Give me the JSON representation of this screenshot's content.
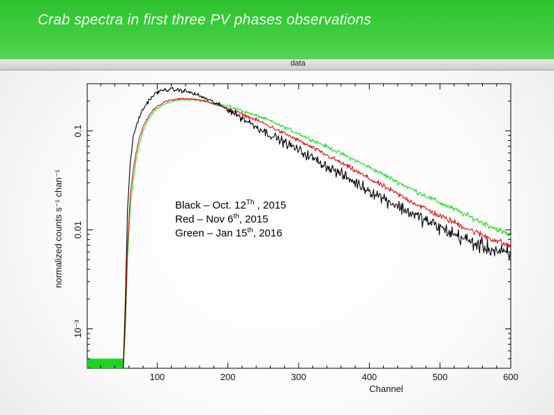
{
  "slide": {
    "title": "Crab spectra in first three PV phases observations"
  },
  "chart_data": {
    "type": "line",
    "plot_header": "data",
    "xlabel": "Channel",
    "ylabel": "normalized counts s⁻¹ chan⁻¹",
    "xlim": [
      1,
      600
    ],
    "ylim": [
      0.0004,
      0.3
    ],
    "y_scale": "log",
    "x_ticks": [
      100,
      200,
      300,
      400,
      500,
      600
    ],
    "y_ticks": [
      {
        "value": 0.001,
        "label": "10⁻³"
      },
      {
        "value": 0.01,
        "label": "0.01"
      },
      {
        "value": 0.1,
        "label": "0.1"
      }
    ],
    "legend": [
      {
        "name": "Black",
        "date": "Oct. 12",
        "sup": "Th",
        "year": " , 2015",
        "color": "#000000"
      },
      {
        "name": "Red",
        "date": "Nov 6",
        "sup": "th",
        "year": ", 2015",
        "color": "#e01010"
      },
      {
        "name": "Green",
        "date": "Jan 15",
        "sup": "th",
        "year": ", 2016",
        "color": "#22e022"
      }
    ],
    "series": [
      {
        "color": "#000000",
        "noise": 0.16,
        "floor_value": 0.0005,
        "x": [
          52,
          55,
          58,
          62,
          66,
          70,
          75,
          80,
          85,
          90,
          95,
          100,
          110,
          120,
          130,
          140,
          150,
          160,
          170,
          180,
          200,
          220,
          250,
          300,
          350,
          400,
          450,
          500,
          550,
          600
        ],
        "y": [
          0.0004,
          0.002,
          0.016,
          0.05,
          0.085,
          0.11,
          0.14,
          0.165,
          0.19,
          0.21,
          0.23,
          0.245,
          0.26,
          0.262,
          0.258,
          0.252,
          0.24,
          0.226,
          0.21,
          0.195,
          0.165,
          0.135,
          0.1,
          0.064,
          0.04,
          0.025,
          0.016,
          0.0105,
          0.0072,
          0.0055
        ]
      },
      {
        "color": "#e01010",
        "noise": 0.07,
        "floor_value": 0.0005,
        "x": [
          52,
          55,
          58,
          62,
          66,
          70,
          75,
          80,
          85,
          90,
          95,
          100,
          110,
          120,
          130,
          140,
          150,
          160,
          170,
          180,
          200,
          220,
          250,
          300,
          350,
          400,
          450,
          500,
          550,
          600
        ],
        "y": [
          0.0004,
          0.0012,
          0.007,
          0.023,
          0.04,
          0.06,
          0.085,
          0.11,
          0.13,
          0.148,
          0.165,
          0.178,
          0.195,
          0.205,
          0.21,
          0.212,
          0.21,
          0.205,
          0.197,
          0.188,
          0.168,
          0.148,
          0.12,
          0.08,
          0.052,
          0.033,
          0.021,
          0.0138,
          0.0095,
          0.0068
        ]
      },
      {
        "color": "#22e022",
        "noise": 0.06,
        "floor_value": 0.0005,
        "x": [
          52,
          55,
          58,
          62,
          66,
          70,
          75,
          80,
          85,
          90,
          95,
          100,
          110,
          120,
          130,
          140,
          150,
          160,
          170,
          180,
          200,
          220,
          250,
          300,
          350,
          400,
          450,
          500,
          550,
          600
        ],
        "y": [
          0.0004,
          0.001,
          0.005,
          0.017,
          0.032,
          0.05,
          0.075,
          0.1,
          0.12,
          0.138,
          0.155,
          0.168,
          0.186,
          0.197,
          0.204,
          0.207,
          0.207,
          0.204,
          0.198,
          0.192,
          0.178,
          0.16,
          0.135,
          0.094,
          0.064,
          0.043,
          0.028,
          0.0188,
          0.0128,
          0.0088
        ]
      }
    ]
  }
}
